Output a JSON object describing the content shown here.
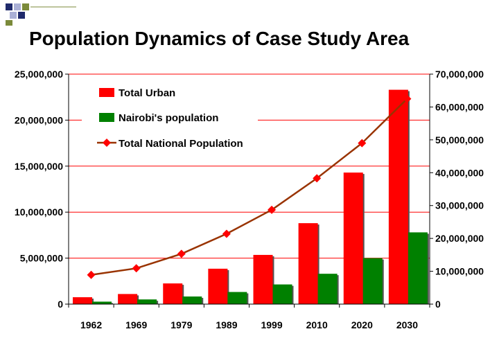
{
  "slide": {
    "title": "Population Dynamics of Case Study Area"
  },
  "colors": {
    "urban": "#ff0000",
    "nairobi": "#008000",
    "national_line": "#993300",
    "national_marker": "#ff0000",
    "gridline": "#ff0000",
    "logo_navy": "#1f2a6b",
    "logo_light": "#aab0d6",
    "logo_olive": "#7b8a3a"
  },
  "chart_data": {
    "type": "bar",
    "categories": [
      "1962",
      "1969",
      "1979",
      "1989",
      "1999",
      "2010",
      "2020",
      "2030"
    ],
    "series": [
      {
        "name": "Total Urban",
        "axis": "left",
        "kind": "bar",
        "values": [
          750000,
          1100000,
          2250000,
          3850000,
          5350000,
          8800000,
          14300000,
          23300000
        ]
      },
      {
        "name": "Nairobi's population",
        "axis": "left",
        "kind": "bar",
        "values": [
          270000,
          510000,
          830000,
          1320000,
          2140000,
          3300000,
          5000000,
          7800000
        ]
      },
      {
        "name": "Total National Population",
        "axis": "right",
        "kind": "line",
        "marker": "diamond",
        "values": [
          8900000,
          10900000,
          15300000,
          21400000,
          28700000,
          38300000,
          49000000,
          62500000
        ]
      }
    ],
    "left_axis": {
      "ylim": [
        0,
        25000000
      ],
      "ticks": [
        "0",
        "5,000,000",
        "10,000,000",
        "15,000,000",
        "20,000,000",
        "25,000,000"
      ],
      "tick_values": [
        0,
        5000000,
        10000000,
        15000000,
        20000000,
        25000000
      ]
    },
    "right_axis": {
      "ylim": [
        0,
        70000000
      ],
      "ticks": [
        "0",
        "10,000,000",
        "20,000,000",
        "30,000,000",
        "40,000,000",
        "50,000,000",
        "60,000,000",
        "70,000,000"
      ],
      "tick_values": [
        0,
        10000000,
        20000000,
        30000000,
        40000000,
        50000000,
        60000000,
        70000000
      ]
    },
    "legend": {
      "placement": "top-left-inside",
      "entries": [
        "Total Urban",
        "Nairobi's population",
        "Total National Population"
      ]
    },
    "grid": true
  }
}
